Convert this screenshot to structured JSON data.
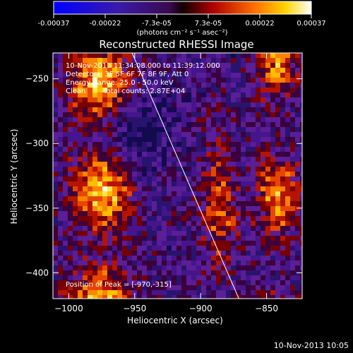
{
  "chart_data": {
    "type": "heatmap",
    "title": "Reconstructed RHESSI Image",
    "xlabel": "Heliocentric X (arcsec)",
    "ylabel": "Heliocentric Y (arcsec)",
    "xlim": [
      -1012,
      -823
    ],
    "ylim": [
      -420,
      -230
    ],
    "xticks": [
      -1000,
      -950,
      -900,
      -850
    ],
    "yticks": [
      -250,
      -300,
      -350,
      -400
    ],
    "colorbar": {
      "tick_labels": [
        "-0.00037",
        "-0.00022",
        "-7.3e-05",
        "7.3e-05",
        "0.00022",
        "0.00037"
      ],
      "range": [
        -0.00037,
        0.00037
      ],
      "unit_label": "(photons cm⁻² s⁻¹ asec⁻²)"
    },
    "annotations": {
      "time_range": "10-Nov-2013 11:34:08.000 to 11:39:12.000",
      "detectors": "Detectors: 3F 5F 6F 7F 8F 9F, Att 0",
      "energy": "Energy Range: 25.0 - 50.0 keV",
      "clean": "Clean",
      "total_counts": "Total counts: 2.87E+04",
      "peak": "Position of Peak = [-970,-315]"
    },
    "limb_line": {
      "x": [
        -952,
        -871
      ],
      "y": [
        -230,
        -420
      ]
    },
    "peak_position": [
      -970,
      -315
    ]
  },
  "footer": {
    "timestamp": "10-Nov-2013 10:05"
  },
  "colors": {
    "background": "#000000",
    "text": "#ffffff"
  }
}
